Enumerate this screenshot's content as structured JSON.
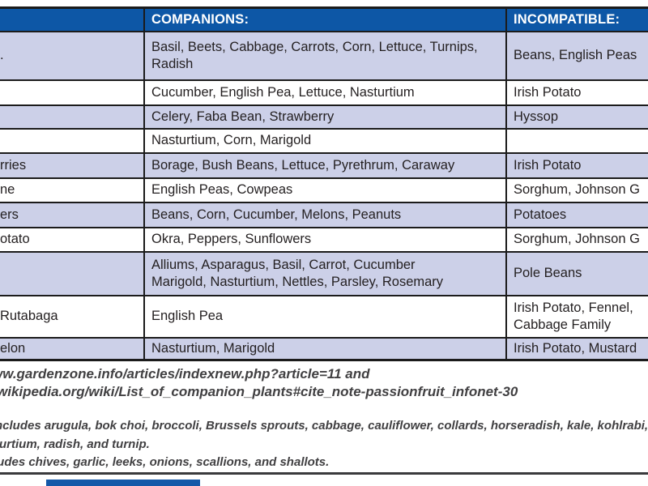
{
  "table": {
    "header": {
      "plant": "",
      "companions": "COMPANIONS:",
      "incompatible": "INCOMPATIBLE:"
    },
    "rows": [
      {
        "plant": ".",
        "companions": "Basil, Beets, Cabbage, Carrots, Corn, Lettuce, Turnips,\nRadish",
        "incompatible": "Beans, English Peas"
      },
      {
        "plant": "",
        "companions": "Cucumber, English Pea, Lettuce, Nasturtium",
        "incompatible": "Irish Potato"
      },
      {
        "plant": "",
        "companions": "Celery, Faba Bean, Strawberry",
        "incompatible": "Hyssop"
      },
      {
        "plant": "",
        "companions": "Nasturtium, Corn, Marigold",
        "incompatible": ""
      },
      {
        "plant": "rries",
        "companions": "Borage, Bush Beans, Lettuce, Pyrethrum, Caraway",
        "incompatible": "Irish Potato"
      },
      {
        "plant": "ne",
        "companions": "English Peas, Cowpeas",
        "incompatible": "Sorghum, Johnson G"
      },
      {
        "plant": "ers",
        "companions": "Beans, Corn, Cucumber, Melons, Peanuts",
        "incompatible": "Potatoes"
      },
      {
        "plant": "otato",
        "companions": "Okra, Peppers, Sunflowers",
        "incompatible": "Sorghum, Johnson G"
      },
      {
        "plant": "",
        "companions": "Alliums, Asparagus, Basil, Carrot, Cucumber\nMarigold, Nasturtium, Nettles, Parsley, Rosemary",
        "incompatible": "Pole Beans"
      },
      {
        "plant": "Rutabaga",
        "companions": "English Pea",
        "incompatible": "Irish Potato, Fennel,\nCabbage Family"
      },
      {
        "plant": "elon",
        "companions": "Nasturtium, Marigold",
        "incompatible": "Irish Potato, Mustard"
      }
    ]
  },
  "footer": {
    "source_line1": "ww.gardenzone.info/articles/indexnew.php?article=11 and",
    "source_line2": "wikipedia.org/wiki/List_of_companion_plants#cite_note-passionfruit_infonet-30",
    "note1_line1": "ncludes arugula, bok choi, broccoli, Brussels sprouts, cabbage, cauliflower, collards, horseradish, kale, kohlrabi, mizuna",
    "note1_line2": "turtium, radish, and turnip.",
    "note2": "ludes chives, garlic, leeks, onions, scallions, and shallots."
  },
  "colors": {
    "header_blue": "#0D57A6",
    "row_shade_lavender": "#CCD0E8",
    "border_black": "#1B1B1B",
    "cell_text": "#231F20",
    "footer_text": "#414042",
    "bottom_bar_blue": "#1458A8"
  }
}
